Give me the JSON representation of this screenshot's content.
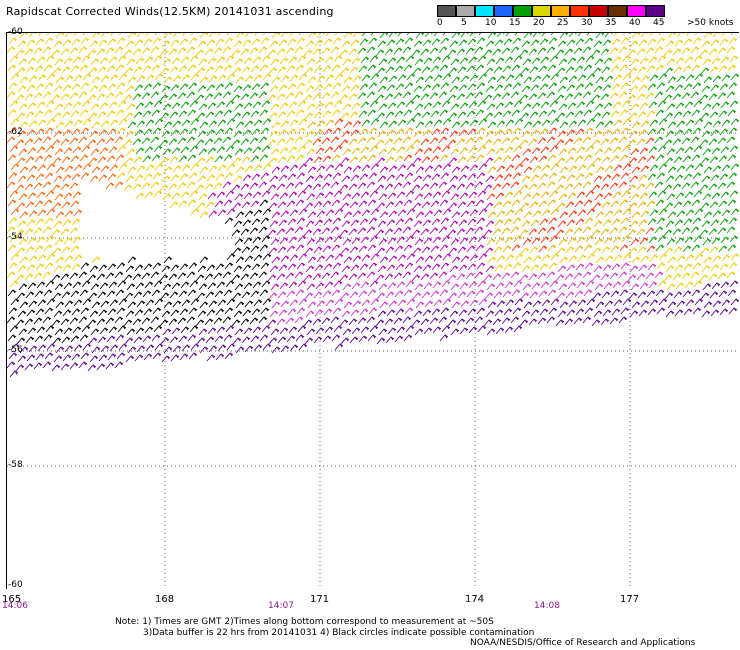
{
  "header": {
    "title": "Rapidscat Corrected Winds(12.5KM) 20141031 ascending"
  },
  "legend": {
    "unit_label": ">50 knots",
    "ticks": [
      "0",
      "5",
      "10",
      "15",
      "20",
      "25",
      "30",
      "35",
      "40",
      "45"
    ],
    "colors": [
      "#555555",
      "#aaaaaa",
      "#00e5ff",
      "#1e64ff",
      "#00a000",
      "#d8d800",
      "#ffb000",
      "#ff3000",
      "#c80000",
      "#6a2f00",
      "#ff00ff",
      "#5a008c"
    ]
  },
  "map": {
    "lat_labels": [
      "-60",
      "-62",
      "-54",
      "-56",
      "-58",
      "-60"
    ],
    "lon_labels": [
      "165",
      "168",
      "171",
      "174",
      "177"
    ],
    "time_labels": [
      "14:06",
      "14:07",
      "14:08"
    ],
    "grid_lines": "dotted"
  },
  "notes": {
    "line1": "Note: 1) Times are GMT 2)Times along bottom correspond to measurement at ~50S",
    "line2": "3)Data buffer is 22 hrs from 20141031 4) Black circles indicate possible contamination"
  },
  "credit": "NOAA/NESDIS/Office of Research and Applications"
}
